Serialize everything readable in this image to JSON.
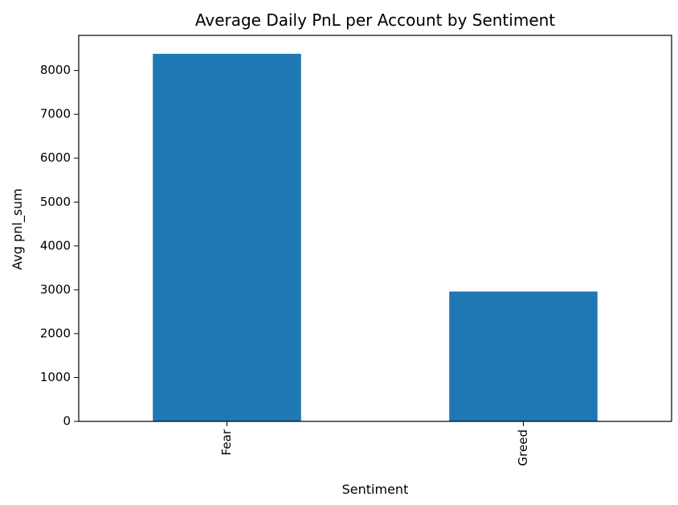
{
  "chart_data": {
    "type": "bar",
    "title": "Average Daily PnL per Account by Sentiment",
    "xlabel": "Sentiment",
    "ylabel": "Avg pnl_sum",
    "categories": [
      "Fear",
      "Greed"
    ],
    "values": [
      8380,
      2960
    ],
    "ylim": [
      0,
      8800
    ],
    "yticks": [
      0,
      1000,
      2000,
      3000,
      4000,
      5000,
      6000,
      7000,
      8000
    ],
    "yticks_labels": [
      "0",
      "1000",
      "2000",
      "3000",
      "4000",
      "5000",
      "6000",
      "7000",
      "8000"
    ],
    "bar_color": "#1f77b4",
    "grid": false,
    "legend": "none"
  }
}
